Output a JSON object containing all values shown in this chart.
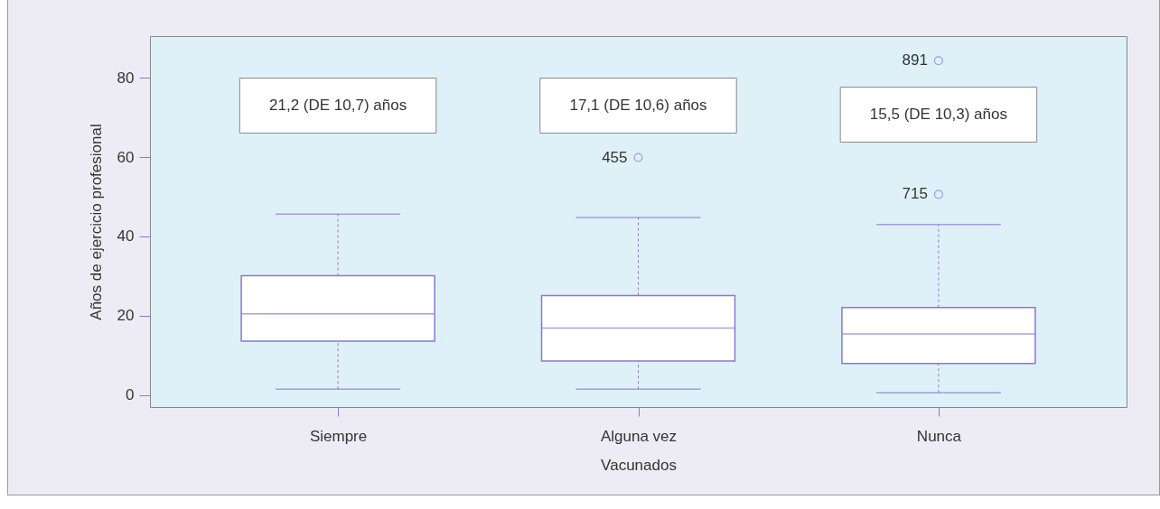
{
  "chart_data": {
    "type": "box",
    "xlabel": "Vacunados",
    "ylabel": "Años de ejercicio profesional",
    "categories": [
      "Siempre",
      "Alguna vez",
      "Nunca"
    ],
    "boxes": [
      {
        "low": 1.5,
        "q1": 13.6,
        "median": 20.5,
        "q3": 30.1,
        "high": 45.6
      },
      {
        "low": 1.5,
        "q1": 8.6,
        "median": 16.9,
        "q3": 25.1,
        "high": 44.8,
        "outliers": [
          59.9
        ]
      },
      {
        "low": 0.6,
        "q1": 8.0,
        "median": 15.4,
        "q3": 22.1,
        "high": 43.0,
        "outliers": [
          50.6,
          84.3
        ]
      }
    ],
    "color": "#8878d8",
    "ylim": [
      -3,
      90.5
    ],
    "yticks": [
      0,
      20,
      40,
      60,
      80
    ],
    "grid": false,
    "annotations": [
      "21,2 (DE 10,7) años",
      "17,1 (DE 10,6) años",
      "15,5 (DE 10,3) años",
      "455",
      "715",
      "891"
    ]
  }
}
